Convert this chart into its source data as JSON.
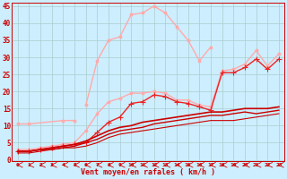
{
  "bg_color": "#cceeff",
  "grid_color": "#aacccc",
  "xlabel": "Vent moyen/en rafales ( km/h )",
  "xlabel_color": "#cc0000",
  "tick_color": "#cc0000",
  "x_values": [
    0,
    1,
    2,
    3,
    4,
    5,
    6,
    7,
    8,
    9,
    10,
    11,
    12,
    13,
    14,
    15,
    16,
    17,
    18,
    19,
    20,
    21,
    22,
    23
  ],
  "ylim": [
    0,
    46
  ],
  "yticks": [
    0,
    5,
    10,
    15,
    20,
    25,
    30,
    35,
    40,
    45
  ],
  "line1": {
    "color": "#ffaaaa",
    "lw": 1.0,
    "marker": "o",
    "markersize": 2.0,
    "data": [
      10.5,
      10.5,
      null,
      null,
      11.5,
      11.5,
      null,
      null,
      null,
      null,
      null,
      null,
      null,
      null,
      null,
      null,
      null,
      null,
      null,
      null,
      null,
      null,
      null,
      null
    ]
  },
  "line1a": {
    "color": "#ffaaaa",
    "lw": 1.0,
    "marker": "o",
    "markersize": 2.0,
    "data": [
      null,
      null,
      null,
      null,
      null,
      null,
      16.0,
      29.0,
      35.0,
      36.0,
      42.5,
      43.0,
      45.0,
      43.0,
      39.0,
      35.0,
      29.0,
      33.0,
      null,
      null,
      null,
      null,
      null,
      null
    ]
  },
  "line2": {
    "color": "#ffaaaa",
    "lw": 1.0,
    "marker": "o",
    "markersize": 2.0,
    "data": [
      3.0,
      3.0,
      3.5,
      4.0,
      4.5,
      5.0,
      8.5,
      13.5,
      17.0,
      18.0,
      19.5,
      19.5,
      20.0,
      19.5,
      17.5,
      17.5,
      16.0,
      15.5,
      26.0,
      26.5,
      28.0,
      32.0,
      27.5,
      31.0
    ]
  },
  "line3": {
    "color": "#ee2222",
    "lw": 1.0,
    "marker": "+",
    "markersize": 4,
    "data": [
      2.5,
      2.5,
      3.0,
      3.5,
      4.0,
      4.5,
      5.0,
      8.0,
      11.0,
      12.5,
      16.5,
      17.0,
      19.0,
      18.5,
      17.0,
      16.5,
      15.5,
      14.5,
      25.5,
      25.5,
      27.0,
      29.5,
      26.5,
      29.5
    ]
  },
  "line4": {
    "color": "#cc0000",
    "lw": 1.2,
    "marker": null,
    "data": [
      2.5,
      2.5,
      3.0,
      3.5,
      4.0,
      4.5,
      5.5,
      7.0,
      8.5,
      9.5,
      10.0,
      11.0,
      11.5,
      12.0,
      12.5,
      13.0,
      13.5,
      14.0,
      14.0,
      14.5,
      15.0,
      15.0,
      15.0,
      15.5
    ]
  },
  "line5": {
    "color": "#cc0000",
    "lw": 1.0,
    "marker": null,
    "data": [
      2.5,
      2.5,
      3.0,
      3.0,
      3.5,
      4.0,
      5.0,
      6.0,
      7.5,
      8.5,
      9.0,
      9.5,
      10.5,
      11.0,
      11.5,
      12.0,
      12.5,
      13.0,
      13.0,
      13.5,
      14.0,
      13.5,
      14.0,
      14.5
    ]
  },
  "line6": {
    "color": "#cc0000",
    "lw": 0.8,
    "marker": null,
    "data": [
      2.0,
      2.0,
      2.5,
      3.0,
      3.5,
      3.5,
      4.0,
      5.0,
      6.5,
      7.5,
      8.0,
      8.5,
      9.0,
      9.5,
      10.0,
      10.5,
      11.0,
      11.5,
      11.5,
      11.5,
      12.0,
      12.5,
      13.0,
      13.5
    ]
  },
  "arrow_color": "#cc0000"
}
